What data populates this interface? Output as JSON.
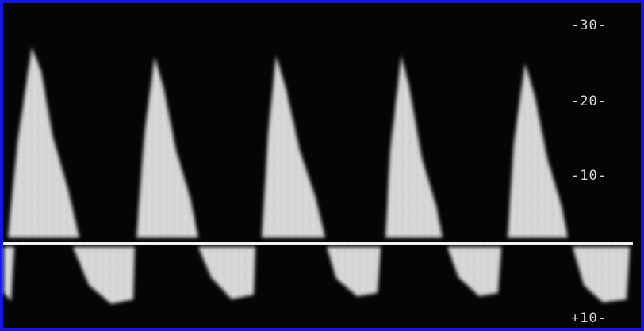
{
  "scale": {
    "labels": [
      "-30-",
      "-20-",
      "-10-",
      "+10-"
    ]
  }
}
